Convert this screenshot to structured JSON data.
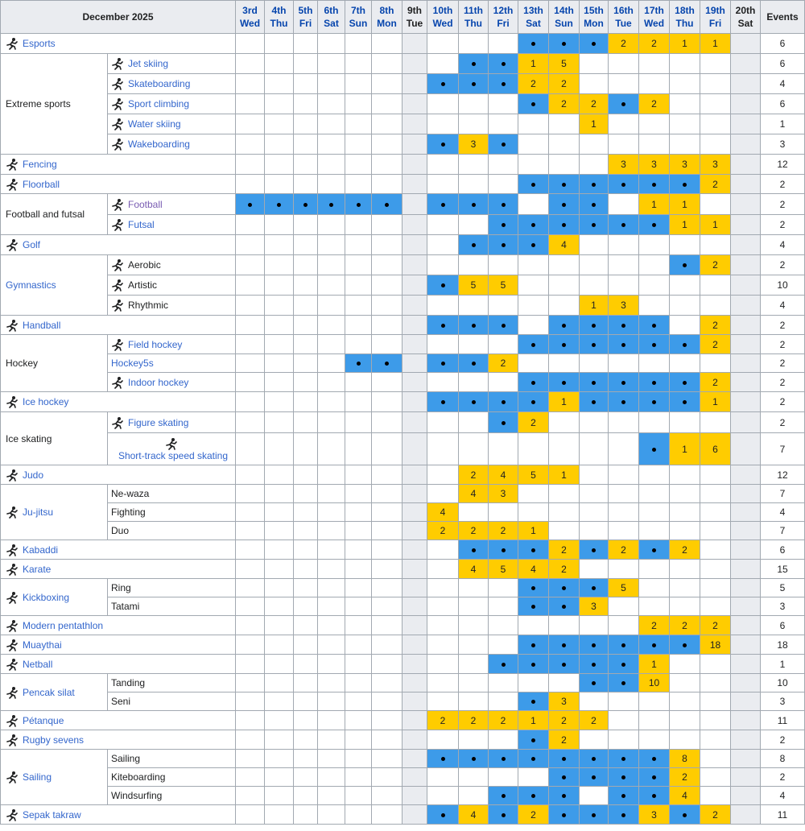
{
  "month_label": "December 2025",
  "events_label": "Events",
  "days": [
    {
      "d": "3rd",
      "w": "Wed"
    },
    {
      "d": "4th",
      "w": "Thu"
    },
    {
      "d": "5th",
      "w": "Fri"
    },
    {
      "d": "6th",
      "w": "Sat"
    },
    {
      "d": "7th",
      "w": "Sun"
    },
    {
      "d": "8th",
      "w": "Mon"
    },
    {
      "d": "9th",
      "w": "Tue"
    },
    {
      "d": "10th",
      "w": "Wed"
    },
    {
      "d": "11th",
      "w": "Thu"
    },
    {
      "d": "12th",
      "w": "Fri"
    },
    {
      "d": "13th",
      "w": "Sat"
    },
    {
      "d": "14th",
      "w": "Sun"
    },
    {
      "d": "15th",
      "w": "Mon"
    },
    {
      "d": "16th",
      "w": "Tue"
    },
    {
      "d": "17th",
      "w": "Wed"
    },
    {
      "d": "18th",
      "w": "Thu"
    },
    {
      "d": "19th",
      "w": "Fri"
    },
    {
      "d": "20th",
      "w": "Sat"
    }
  ],
  "colors": {
    "competition_day": "#3d9be9",
    "medal_day": "#ffcc00",
    "rest_day": "#eaecf0",
    "header": "#eaecf0"
  },
  "rows": [
    {
      "sport": "Esports",
      "icon": "esports-icon",
      "link": true,
      "h": 25,
      "cells": [
        "",
        "",
        "",
        "",
        "",
        "",
        "",
        "",
        "",
        "",
        "•",
        "•",
        "•",
        "2",
        "2",
        "1",
        "1",
        ""
      ],
      "events": "6"
    },
    {
      "group": "Extreme sports",
      "group_link": false,
      "span": 5,
      "sub": "Jet skiing",
      "icon": "jet-skiing-icon",
      "link": true,
      "h": 25,
      "cells": [
        "",
        "",
        "",
        "",
        "",
        "",
        "",
        "",
        "•",
        "•",
        "1",
        "5",
        "",
        "",
        "",
        "",
        "",
        ""
      ],
      "events": "6"
    },
    {
      "sub": "Skateboarding",
      "icon": "skateboarding-icon",
      "link": true,
      "h": 25,
      "cells": [
        "",
        "",
        "",
        "",
        "",
        "",
        "",
        "•",
        "•",
        "•",
        "2",
        "2",
        "",
        "",
        "",
        "",
        "",
        ""
      ],
      "events": "4"
    },
    {
      "sub": "Sport climbing",
      "icon": "sport-climbing-icon",
      "link": true,
      "h": 25,
      "cells": [
        "",
        "",
        "",
        "",
        "",
        "",
        "",
        "",
        "",
        "",
        "•",
        "2",
        "2",
        "•",
        "2",
        "",
        "",
        ""
      ],
      "events": "6"
    },
    {
      "sub": "Water skiing",
      "icon": "water-skiing-icon",
      "link": true,
      "h": 25,
      "cells": [
        "",
        "",
        "",
        "",
        "",
        "",
        "",
        "",
        "",
        "",
        "",
        "",
        "1",
        "",
        "",
        "",
        "",
        ""
      ],
      "events": "1"
    },
    {
      "sub": "Wakeboarding",
      "icon": "wakeboarding-icon",
      "link": true,
      "h": 25,
      "cells": [
        "",
        "",
        "",
        "",
        "",
        "",
        "",
        "•",
        "3",
        "•",
        "",
        "",
        "",
        "",
        "",
        "",
        "",
        ""
      ],
      "events": "3"
    },
    {
      "sport": "Fencing",
      "icon": "fencing-icon",
      "link": true,
      "h": 25,
      "cells": [
        "",
        "",
        "",
        "",
        "",
        "",
        "",
        "",
        "",
        "",
        "",
        "",
        "",
        "3",
        "3",
        "3",
        "3",
        ""
      ],
      "events": "12"
    },
    {
      "sport": "Floorball",
      "icon": "floorball-icon",
      "link": true,
      "h": 24,
      "cells": [
        "",
        "",
        "",
        "",
        "",
        "",
        "",
        "",
        "",
        "",
        "•",
        "•",
        "•",
        "•",
        "•",
        "•",
        "2",
        ""
      ],
      "events": "2"
    },
    {
      "group": "Football and futsal",
      "group_link": false,
      "span": 2,
      "sub": "Football",
      "icon": "football-icon",
      "link": true,
      "visited": true,
      "h": 26,
      "cells": [
        "•",
        "•",
        "•",
        "•",
        "•",
        "•",
        "",
        "•",
        "•",
        "•",
        "",
        "•",
        "•",
        "",
        "1",
        "1",
        "",
        ""
      ],
      "events": "2"
    },
    {
      "sub": "Futsal",
      "icon": "futsal-icon",
      "link": true,
      "h": 25,
      "cells": [
        "",
        "",
        "",
        "",
        "",
        "",
        "",
        "",
        "",
        "•",
        "•",
        "•",
        "•",
        "•",
        "•",
        "1",
        "1",
        ""
      ],
      "events": "2"
    },
    {
      "sport": "Golf",
      "icon": "golf-icon",
      "link": true,
      "h": 25,
      "cells": [
        "",
        "",
        "",
        "",
        "",
        "",
        "",
        "",
        "•",
        "•",
        "•",
        "4",
        "",
        "",
        "",
        "",
        "",
        ""
      ],
      "events": "4"
    },
    {
      "group": "Gymnastics",
      "group_link": true,
      "span": 3,
      "sub": "Aerobic",
      "icon": "aerobic-icon",
      "link": false,
      "h": 25,
      "cells": [
        "",
        "",
        "",
        "",
        "",
        "",
        "",
        "",
        "",
        "",
        "",
        "",
        "",
        "",
        "",
        "•",
        "2",
        ""
      ],
      "events": "2"
    },
    {
      "sub": "Artistic",
      "icon": "artistic-gymnastics-icon",
      "link": false,
      "h": 25,
      "cells": [
        "",
        "",
        "",
        "",
        "",
        "",
        "",
        "•",
        "5",
        "5",
        "",
        "",
        "",
        "",
        "",
        "",
        "",
        ""
      ],
      "events": "10"
    },
    {
      "sub": "Rhythmic",
      "icon": "rhythmic-gymnastics-icon",
      "link": false,
      "h": 25,
      "cells": [
        "",
        "",
        "",
        "",
        "",
        "",
        "",
        "",
        "",
        "",
        "",
        "",
        "1",
        "3",
        "",
        "",
        "",
        ""
      ],
      "events": "4"
    },
    {
      "sport": "Handball",
      "icon": "handball-icon",
      "link": true,
      "h": 24,
      "cells": [
        "",
        "",
        "",
        "",
        "",
        "",
        "",
        "•",
        "•",
        "•",
        "",
        "•",
        "•",
        "•",
        "•",
        "",
        "2",
        ""
      ],
      "events": "2"
    },
    {
      "group": "Hockey",
      "group_link": false,
      "span": 3,
      "sub": "Field hockey",
      "icon": "field-hockey-icon",
      "link": true,
      "h": 24,
      "cells": [
        "",
        "",
        "",
        "",
        "",
        "",
        "",
        "",
        "",
        "",
        "•",
        "•",
        "•",
        "•",
        "•",
        "•",
        "2",
        ""
      ],
      "events": "2"
    },
    {
      "sub": "Hockey5s",
      "icon": "",
      "link": true,
      "h": 23,
      "cells": [
        "",
        "",
        "",
        "",
        "•",
        "•",
        "",
        "•",
        "•",
        "2",
        "",
        "",
        "",
        "",
        "",
        "",
        "",
        ""
      ],
      "events": "2"
    },
    {
      "sub": "Indoor hockey",
      "icon": "indoor-hockey-icon",
      "link": true,
      "h": 24,
      "cells": [
        "",
        "",
        "",
        "",
        "",
        "",
        "",
        "",
        "",
        "",
        "•",
        "•",
        "•",
        "•",
        "•",
        "•",
        "2",
        ""
      ],
      "events": "2"
    },
    {
      "sport": "Ice hockey",
      "icon": "ice-hockey-icon",
      "link": true,
      "h": 25,
      "cells": [
        "",
        "",
        "",
        "",
        "",
        "",
        "",
        "•",
        "•",
        "•",
        "•",
        "1",
        "•",
        "•",
        "•",
        "•",
        "1",
        ""
      ],
      "events": "2"
    },
    {
      "group": "Ice skating",
      "group_link": false,
      "span": 2,
      "sub": "Figure skating",
      "icon": "figure-skating-icon",
      "link": true,
      "h": 26,
      "cells": [
        "",
        "",
        "",
        "",
        "",
        "",
        "",
        "",
        "",
        "•",
        "2",
        "",
        "",
        "",
        "",
        "",
        "",
        ""
      ],
      "events": "2"
    },
    {
      "sub": "Short-track speed skating",
      "icon": "short-track-icon",
      "link": true,
      "stacked": true,
      "h": 40,
      "cells": [
        "",
        "",
        "",
        "",
        "",
        "",
        "",
        "",
        "",
        "",
        "",
        "",
        "",
        "",
        "•",
        "1",
        "6",
        ""
      ],
      "events": "7"
    },
    {
      "sport": "Judo",
      "icon": "judo-icon",
      "link": true,
      "h": 24,
      "cells": [
        "",
        "",
        "",
        "",
        "",
        "",
        "",
        "",
        "2",
        "4",
        "5",
        "1",
        "",
        "",
        "",
        "",
        "",
        ""
      ],
      "events": "12"
    },
    {
      "group": "Ju-jitsu",
      "group_link": true,
      "group_icon": "ju-jitsu-icon",
      "span": 3,
      "sub": "Ne-waza",
      "icon": "",
      "link": false,
      "h": 23,
      "cells": [
        "",
        "",
        "",
        "",
        "",
        "",
        "",
        "",
        "4",
        "3",
        "",
        "",
        "",
        "",
        "",
        "",
        "",
        ""
      ],
      "events": "7"
    },
    {
      "sub": "Fighting",
      "icon": "",
      "link": false,
      "h": 23,
      "cells": [
        "",
        "",
        "",
        "",
        "",
        "",
        "",
        "4",
        "",
        "",
        "",
        "",
        "",
        "",
        "",
        "",
        "",
        ""
      ],
      "events": "4"
    },
    {
      "sub": "Duo",
      "icon": "",
      "link": false,
      "h": 23,
      "cells": [
        "",
        "",
        "",
        "",
        "",
        "",
        "",
        "2",
        "2",
        "2",
        "1",
        "",
        "",
        "",
        "",
        "",
        "",
        ""
      ],
      "events": "7"
    },
    {
      "sport": "Kabaddi",
      "icon": "kabaddi-icon",
      "link": true,
      "h": 24,
      "cells": [
        "",
        "",
        "",
        "",
        "",
        "",
        "",
        "",
        "•",
        "•",
        "•",
        "2",
        "•",
        "2",
        "•",
        "2",
        "",
        ""
      ],
      "events": "6"
    },
    {
      "sport": "Karate",
      "icon": "karate-icon",
      "link": true,
      "h": 24,
      "cells": [
        "",
        "",
        "",
        "",
        "",
        "",
        "",
        "",
        "4",
        "5",
        "4",
        "2",
        "",
        "",
        "",
        "",
        "",
        ""
      ],
      "events": "15"
    },
    {
      "group": "Kickboxing",
      "group_link": true,
      "group_icon": "kickboxing-icon",
      "span": 2,
      "sub": "Ring",
      "icon": "",
      "link": false,
      "h": 23,
      "cells": [
        "",
        "",
        "",
        "",
        "",
        "",
        "",
        "",
        "",
        "",
        "•",
        "•",
        "•",
        "5",
        "",
        "",
        "",
        ""
      ],
      "events": "5"
    },
    {
      "sub": "Tatami",
      "icon": "",
      "link": false,
      "h": 23,
      "cells": [
        "",
        "",
        "",
        "",
        "",
        "",
        "",
        "",
        "",
        "",
        "•",
        "•",
        "3",
        "",
        "",
        "",
        "",
        ""
      ],
      "events": "3"
    },
    {
      "sport": "Modern pentathlon",
      "icon": "modern-pentathlon-icon",
      "link": true,
      "h": 24,
      "cells": [
        "",
        "",
        "",
        "",
        "",
        "",
        "",
        "",
        "",
        "",
        "",
        "",
        "",
        "",
        "2",
        "2",
        "2",
        ""
      ],
      "events": "6"
    },
    {
      "sport": "Muaythai",
      "icon": "muaythai-icon",
      "link": true,
      "h": 24,
      "cells": [
        "",
        "",
        "",
        "",
        "",
        "",
        "",
        "",
        "",
        "",
        "•",
        "•",
        "•",
        "•",
        "•",
        "•",
        "18",
        ""
      ],
      "events": "18"
    },
    {
      "sport": "Netball",
      "icon": "netball-icon",
      "link": true,
      "h": 24,
      "cells": [
        "",
        "",
        "",
        "",
        "",
        "",
        "",
        "",
        "",
        "•",
        "•",
        "•",
        "•",
        "•",
        "1",
        "",
        "",
        ""
      ],
      "events": "1"
    },
    {
      "group": "Pencak silat",
      "group_link": true,
      "group_icon": "pencak-silat-icon",
      "span": 2,
      "sub": "Tanding",
      "icon": "",
      "link": false,
      "h": 23,
      "cells": [
        "",
        "",
        "",
        "",
        "",
        "",
        "",
        "",
        "",
        "",
        "",
        "",
        "•",
        "•",
        "10",
        "",
        "",
        ""
      ],
      "events": "10"
    },
    {
      "sub": "Seni",
      "icon": "",
      "link": false,
      "h": 23,
      "cells": [
        "",
        "",
        "",
        "",
        "",
        "",
        "",
        "",
        "",
        "",
        "•",
        "3",
        "",
        "",
        "",
        "",
        "",
        ""
      ],
      "events": "3"
    },
    {
      "sport": "Pétanque",
      "icon": "petanque-icon",
      "link": true,
      "h": 24,
      "cells": [
        "",
        "",
        "",
        "",
        "",
        "",
        "",
        "2",
        "2",
        "2",
        "1",
        "2",
        "2",
        "",
        "",
        "",
        "",
        ""
      ],
      "events": "11"
    },
    {
      "sport": "Rugby sevens",
      "icon": "rugby-sevens-icon",
      "link": true,
      "h": 24,
      "cells": [
        "",
        "",
        "",
        "",
        "",
        "",
        "",
        "",
        "",
        "",
        "•",
        "2",
        "",
        "",
        "",
        "",
        "",
        ""
      ],
      "events": "2"
    },
    {
      "group": "Sailing",
      "group_link": true,
      "group_icon": "sailing-icon",
      "span": 3,
      "sub": "Sailing",
      "icon": "",
      "link": false,
      "h": 23,
      "cells": [
        "",
        "",
        "",
        "",
        "",
        "",
        "",
        "•",
        "•",
        "•",
        "•",
        "•",
        "•",
        "•",
        "•",
        "8",
        "",
        ""
      ],
      "events": "8"
    },
    {
      "sub": "Kiteboarding",
      "icon": "",
      "link": false,
      "h": 23,
      "cells": [
        "",
        "",
        "",
        "",
        "",
        "",
        "",
        "",
        "",
        "",
        "",
        "•",
        "•",
        "•",
        "•",
        "2",
        "",
        ""
      ],
      "events": "2"
    },
    {
      "sub": "Windsurfing",
      "icon": "",
      "link": false,
      "h": 23,
      "cells": [
        "",
        "",
        "",
        "",
        "",
        "",
        "",
        "",
        "",
        "•",
        "•",
        "•",
        "",
        "•",
        "•",
        "4",
        "",
        ""
      ],
      "events": "4"
    },
    {
      "sport": "Sepak takraw",
      "icon": "sepak-takraw-icon",
      "link": true,
      "h": 24,
      "cells": [
        "",
        "",
        "",
        "",
        "",
        "",
        "",
        "•",
        "4",
        "•",
        "2",
        "•",
        "•",
        "•",
        "3",
        "•",
        "2",
        ""
      ],
      "events": "11"
    }
  ]
}
